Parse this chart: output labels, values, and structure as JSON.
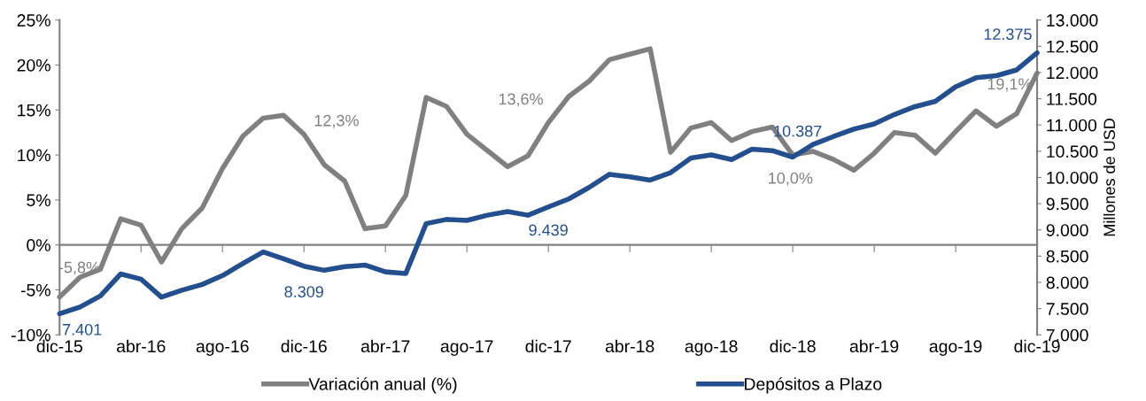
{
  "chart_data": {
    "type": "line",
    "categories": [
      "dic-15",
      null,
      null,
      null,
      "abr-16",
      null,
      null,
      null,
      "ago-16",
      null,
      null,
      null,
      "dic-16",
      null,
      null,
      null,
      "abr-17",
      null,
      null,
      null,
      "ago-17",
      null,
      null,
      null,
      "dic-17",
      null,
      null,
      null,
      "abr-18",
      null,
      null,
      null,
      "ago-18",
      null,
      null,
      null,
      "dic-18",
      null,
      null,
      null,
      "abr-19",
      null,
      null,
      null,
      "ago-19",
      null,
      null,
      null,
      "dic-19"
    ],
    "series": [
      {
        "name": "Variación anual (%)",
        "color": "#808080",
        "values": [
          -5.8,
          -3.6,
          -2.7,
          2.9,
          2.2,
          -1.9,
          1.8,
          4.1,
          8.5,
          12.1,
          14.1,
          14.4,
          12.3,
          8.9,
          7.1,
          1.8,
          2.1,
          5.5,
          16.4,
          15.4,
          12.3,
          10.5,
          8.7,
          9.9,
          13.6,
          16.5,
          18.2,
          20.6,
          21.2,
          21.8,
          10.3,
          13.0,
          13.6,
          11.6,
          12.6,
          13.1,
          10.0,
          10.4,
          9.5,
          8.3,
          10.2,
          12.5,
          12.2,
          10.2,
          12.6,
          14.9,
          13.2,
          14.6,
          19.1
        ],
        "value_labels": [
          "-5,8%",
          null,
          null,
          null,
          null,
          null,
          null,
          null,
          null,
          null,
          null,
          null,
          "12,3%",
          null,
          null,
          null,
          null,
          null,
          null,
          null,
          null,
          null,
          null,
          null,
          "13,6%",
          null,
          null,
          null,
          null,
          null,
          null,
          null,
          null,
          null,
          null,
          null,
          "10,0%",
          null,
          null,
          null,
          null,
          null,
          null,
          null,
          null,
          null,
          null,
          null,
          "19,1%"
        ]
      },
      {
        "name": "Depósitos a Plazo",
        "color": "#234f8e",
        "axis": "y2",
        "values": [
          7401,
          7530,
          7740,
          8160,
          8060,
          7720,
          7850,
          7960,
          8130,
          8360,
          8580,
          8450,
          8309,
          8230,
          8300,
          8330,
          8200,
          8170,
          9120,
          9200,
          9180,
          9280,
          9350,
          9280,
          9439,
          9590,
          9810,
          10060,
          10010,
          9950,
          10090,
          10370,
          10430,
          10340,
          10540,
          10510,
          10387,
          10630,
          10780,
          10920,
          11020,
          11200,
          11350,
          11450,
          11730,
          11900,
          11940,
          12050,
          12375
        ],
        "value_labels": [
          "7.401",
          null,
          null,
          null,
          null,
          null,
          null,
          null,
          null,
          null,
          null,
          null,
          "8.309",
          null,
          null,
          null,
          null,
          null,
          null,
          null,
          null,
          null,
          null,
          null,
          "9.439",
          null,
          null,
          null,
          null,
          null,
          null,
          null,
          null,
          null,
          null,
          null,
          "10.387",
          null,
          null,
          null,
          null,
          null,
          null,
          null,
          null,
          null,
          null,
          null,
          "12.375"
        ]
      }
    ],
    "ylim": [
      -10,
      25
    ],
    "yticks": [
      {
        "value": -10,
        "label": "-10%"
      },
      {
        "value": -5,
        "label": "-5%"
      },
      {
        "value": 0,
        "label": "0%"
      },
      {
        "value": 5,
        "label": "5%"
      },
      {
        "value": 10,
        "label": "10%"
      },
      {
        "value": 15,
        "label": "15%"
      },
      {
        "value": 20,
        "label": "20%"
      },
      {
        "value": 25,
        "label": "25%"
      }
    ],
    "y2label": "Millones de USD",
    "y2lim": [
      7000,
      13000
    ],
    "y2ticks": [
      {
        "value": 7000,
        "label": "7.000"
      },
      {
        "value": 7500,
        "label": "7.500"
      },
      {
        "value": 8000,
        "label": "8.000"
      },
      {
        "value": 8500,
        "label": "8.500"
      },
      {
        "value": 9000,
        "label": "9.000"
      },
      {
        "value": 9500,
        "label": "9.500"
      },
      {
        "value": 10000,
        "label": "10.000"
      },
      {
        "value": 10500,
        "label": "10.500"
      },
      {
        "value": 11000,
        "label": "11.000"
      },
      {
        "value": 11500,
        "label": "11.500"
      },
      {
        "value": 12000,
        "label": "12.000"
      },
      {
        "value": 12500,
        "label": "12.500"
      },
      {
        "value": 13000,
        "label": "13.000"
      }
    ],
    "legend": "bottom",
    "marker": "none",
    "line_style": "solid"
  }
}
